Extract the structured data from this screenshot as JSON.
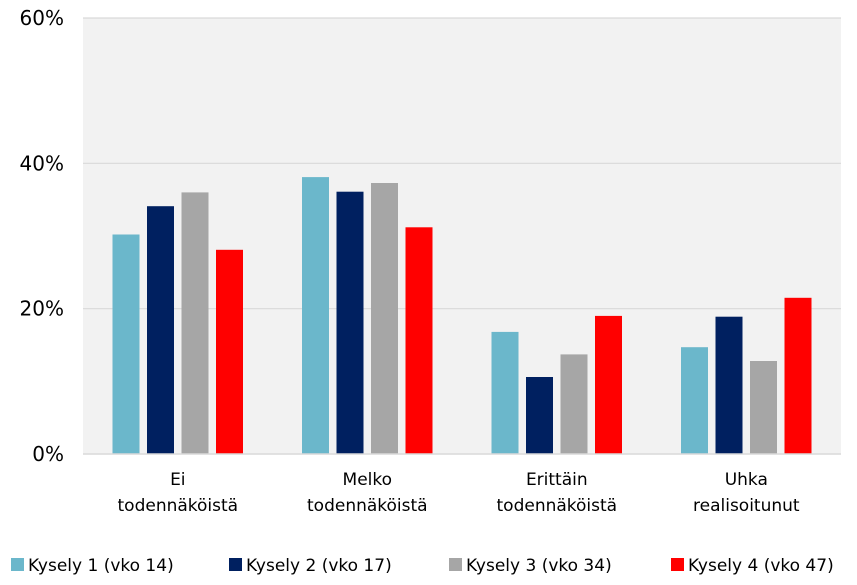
{
  "chart_data": {
    "type": "bar",
    "categories": [
      [
        "Ei",
        "todennäköistä"
      ],
      [
        "Melko",
        "todennäköistä"
      ],
      [
        "Erittäin",
        "todennäköistä"
      ],
      [
        "Uhka",
        "realisoitunut"
      ]
    ],
    "series": [
      {
        "name": "Kysely 1 (vko 14)",
        "color": "#6bb7cb",
        "values": [
          30.2,
          38.1,
          16.8,
          14.7
        ]
      },
      {
        "name": "Kysely 2 (vko 17)",
        "color": "#002060",
        "values": [
          34.1,
          36.1,
          10.6,
          18.9
        ]
      },
      {
        "name": "Kysely 3 (vko 34)",
        "color": "#a6a6a6",
        "values": [
          36.0,
          37.3,
          13.7,
          12.8
        ]
      },
      {
        "name": "Kysely 4 (vko 47)",
        "color": "#ff0000",
        "values": [
          28.1,
          31.2,
          19.0,
          21.5
        ]
      }
    ],
    "y_ticks": [
      "0%",
      "20%",
      "40%",
      "60%"
    ],
    "y_tick_values": [
      0,
      20,
      40,
      60
    ],
    "ylim": [
      0,
      60
    ],
    "grid": true,
    "legend_position": "bottom",
    "plot_background": "#f2f2f2",
    "gridline_color": "#d9d9d9",
    "title": "",
    "xlabel": "",
    "ylabel": ""
  }
}
